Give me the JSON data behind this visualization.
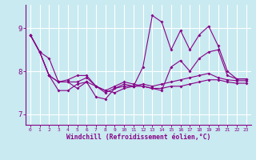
{
  "xlabel": "Windchill (Refroidissement éolien,°C)",
  "bg_color": "#c8eaf0",
  "line_color": "#880088",
  "grid_color": "#ffffff",
  "x_ticks": [
    0,
    1,
    2,
    3,
    4,
    5,
    6,
    7,
    8,
    9,
    10,
    11,
    12,
    13,
    14,
    15,
    16,
    17,
    18,
    19,
    20,
    21,
    22,
    23
  ],
  "y_ticks": [
    7,
    8,
    9
  ],
  "xlim": [
    -0.5,
    23.5
  ],
  "ylim": [
    6.75,
    9.55
  ],
  "series": [
    [
      8.85,
      8.45,
      7.9,
      7.75,
      7.75,
      7.6,
      7.75,
      7.65,
      7.55,
      7.5,
      7.6,
      7.65,
      7.7,
      7.65,
      7.7,
      7.75,
      7.8,
      7.85,
      7.9,
      7.95,
      7.85,
      7.8,
      7.78,
      7.78
    ],
    [
      8.85,
      8.45,
      7.9,
      7.75,
      7.8,
      7.9,
      7.9,
      7.65,
      7.55,
      7.65,
      7.75,
      7.7,
      7.65,
      7.6,
      7.6,
      7.65,
      7.65,
      7.7,
      7.75,
      7.8,
      7.8,
      7.75,
      7.72,
      7.72
    ],
    [
      8.85,
      8.45,
      8.3,
      7.75,
      7.75,
      7.75,
      7.85,
      7.65,
      7.5,
      7.6,
      7.7,
      7.65,
      8.1,
      9.3,
      9.15,
      8.5,
      8.95,
      8.5,
      8.85,
      9.05,
      8.6,
      8.0,
      7.82,
      7.82
    ],
    [
      8.85,
      8.45,
      7.9,
      7.55,
      7.55,
      7.7,
      7.75,
      7.4,
      7.35,
      7.6,
      7.65,
      7.65,
      7.65,
      7.6,
      7.55,
      8.1,
      8.25,
      8.0,
      8.3,
      8.45,
      8.5,
      7.9,
      7.82,
      7.82
    ]
  ]
}
